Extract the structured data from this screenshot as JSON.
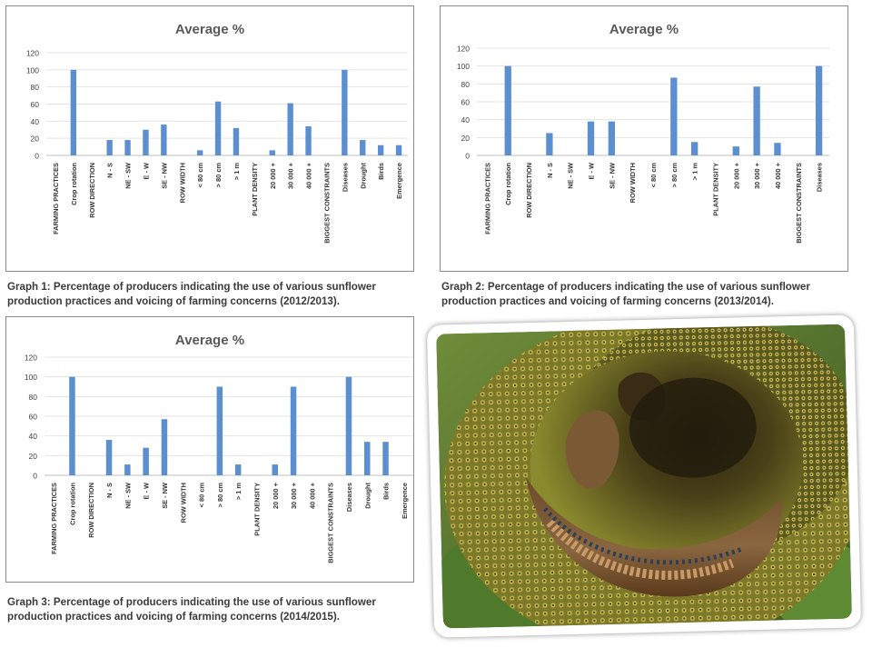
{
  "graphs": [
    {
      "caption": "Graph 1: Percentage of producers indicating the use of various sunflower production practices and voicing of farming concerns (2012/2013).",
      "chart_data": {
        "type": "bar",
        "title": "Average %",
        "ylim": [
          0,
          120
        ],
        "yticks": [
          0,
          20,
          40,
          60,
          80,
          100,
          120
        ],
        "grid": true,
        "categories": [
          "FARMING PRACTICES",
          "Crop rotation",
          "ROW DIRECTION",
          "N - S",
          "NE - SW",
          "E - W",
          "SE - NW",
          "ROW WIDTH",
          "< 80 cm",
          "> 80 cm",
          "> 1 m",
          "PLANT DENSITY",
          "20 000 +",
          "30 000 +",
          "40 000 +",
          "BIGGEST CONSTRAINTS",
          "Diseases",
          "Drought",
          "Birds",
          "Emergence"
        ],
        "values": [
          0,
          100,
          0,
          18,
          18,
          30,
          36,
          0,
          6,
          63,
          32,
          0,
          6,
          61,
          34,
          0,
          100,
          18,
          12,
          12
        ],
        "color": "#5b8fcf"
      }
    },
    {
      "caption": "Graph 2: Percentage of producers indicating the use of various sunflower production practices and voicing of farming concerns (2013/2014).",
      "chart_data": {
        "type": "bar",
        "title": "Average %",
        "ylim": [
          0,
          120
        ],
        "yticks": [
          0,
          20,
          40,
          60,
          80,
          100,
          120
        ],
        "grid": true,
        "categories": [
          "FARMING PRACTICES",
          "Crop rotation",
          "ROW DIRECTION",
          "N - S",
          "NE - SW",
          "E - W",
          "SE - NW",
          "ROW WIDTH",
          "< 80 cm",
          "> 80 cm",
          "> 1 m",
          "PLANT DENSITY",
          "20 000 +",
          "30 000 +",
          "40 000 +",
          "BIGGEST CONSTRAINTS",
          "Diseases"
        ],
        "values": [
          0,
          100,
          0,
          25,
          0,
          38,
          38,
          0,
          0,
          87,
          15,
          0,
          10,
          77,
          14,
          0,
          100
        ],
        "color": "#5b8fcf"
      }
    },
    {
      "caption": "Graph 3: Percentage of producers indicating the use of various sunflower production practices and voicing of farming concerns (2014/2015).",
      "chart_data": {
        "type": "bar",
        "title": "Average %",
        "ylim": [
          0,
          120
        ],
        "yticks": [
          0,
          20,
          40,
          60,
          80,
          100,
          120
        ],
        "grid": true,
        "categories": [
          "FARMING PRACTICES",
          "Crop rotation",
          "ROW DIRECTION",
          "N - S",
          "NE - SW",
          "E - W",
          "SE - NW",
          "ROW WIDTH",
          "< 80 cm",
          "> 80 cm",
          "> 1 m",
          "PLANT DENSITY",
          "20 000 +",
          "30 000 +",
          "40 000 +",
          "BIGGEST CONSTRAINTS",
          "Diseases",
          "Drought",
          "Birds",
          "Emergence"
        ],
        "values": [
          0,
          100,
          0,
          36,
          11,
          28,
          57,
          0,
          0,
          90,
          11,
          0,
          11,
          90,
          0,
          0,
          100,
          34,
          34,
          0
        ],
        "color": "#5b8fcf"
      }
    }
  ],
  "chart_data": [
    {
      "type": "bar",
      "title": "Average %",
      "ylim": [
        0,
        120
      ],
      "categories": [
        "FARMING PRACTICES",
        "Crop rotation",
        "ROW DIRECTION",
        "N - S",
        "NE - SW",
        "E - W",
        "SE - NW",
        "ROW WIDTH",
        "< 80 cm",
        "> 80 cm",
        "> 1 m",
        "PLANT DENSITY",
        "20 000 +",
        "30 000 +",
        "40 000 +",
        "BIGGEST CONSTRAINTS",
        "Diseases",
        "Drought",
        "Birds",
        "Emergence"
      ],
      "values": [
        0,
        100,
        0,
        18,
        18,
        30,
        36,
        0,
        6,
        63,
        32,
        0,
        6,
        61,
        34,
        0,
        100,
        18,
        12,
        12
      ]
    },
    {
      "type": "bar",
      "title": "Average %",
      "ylim": [
        0,
        120
      ],
      "categories": [
        "FARMING PRACTICES",
        "Crop rotation",
        "ROW DIRECTION",
        "N - S",
        "NE - SW",
        "E - W",
        "SE - NW",
        "ROW WIDTH",
        "< 80 cm",
        "> 80 cm",
        "> 1 m",
        "PLANT DENSITY",
        "20 000 +",
        "30 000 +",
        "40 000 +",
        "BIGGEST CONSTRAINTS",
        "Diseases"
      ],
      "values": [
        0,
        100,
        0,
        25,
        0,
        38,
        38,
        0,
        0,
        87,
        15,
        0,
        10,
        77,
        14,
        0,
        100
      ]
    },
    {
      "type": "bar",
      "title": "Average %",
      "ylim": [
        0,
        120
      ],
      "categories": [
        "FARMING PRACTICES",
        "Crop rotation",
        "ROW DIRECTION",
        "N - S",
        "NE - SW",
        "E - W",
        "SE - NW",
        "ROW WIDTH",
        "< 80 cm",
        "> 80 cm",
        "> 1 m",
        "PLANT DENSITY",
        "20 000 +",
        "30 000 +",
        "40 000 +",
        "BIGGEST CONSTRAINTS",
        "Diseases",
        "Drought",
        "Birds",
        "Emergence"
      ],
      "values": [
        0,
        100,
        0,
        36,
        11,
        28,
        57,
        0,
        0,
        90,
        11,
        0,
        11,
        90,
        0,
        0,
        100,
        34,
        34,
        0
      ]
    }
  ],
  "photo": {
    "subject": "sunflower-head-photo"
  }
}
